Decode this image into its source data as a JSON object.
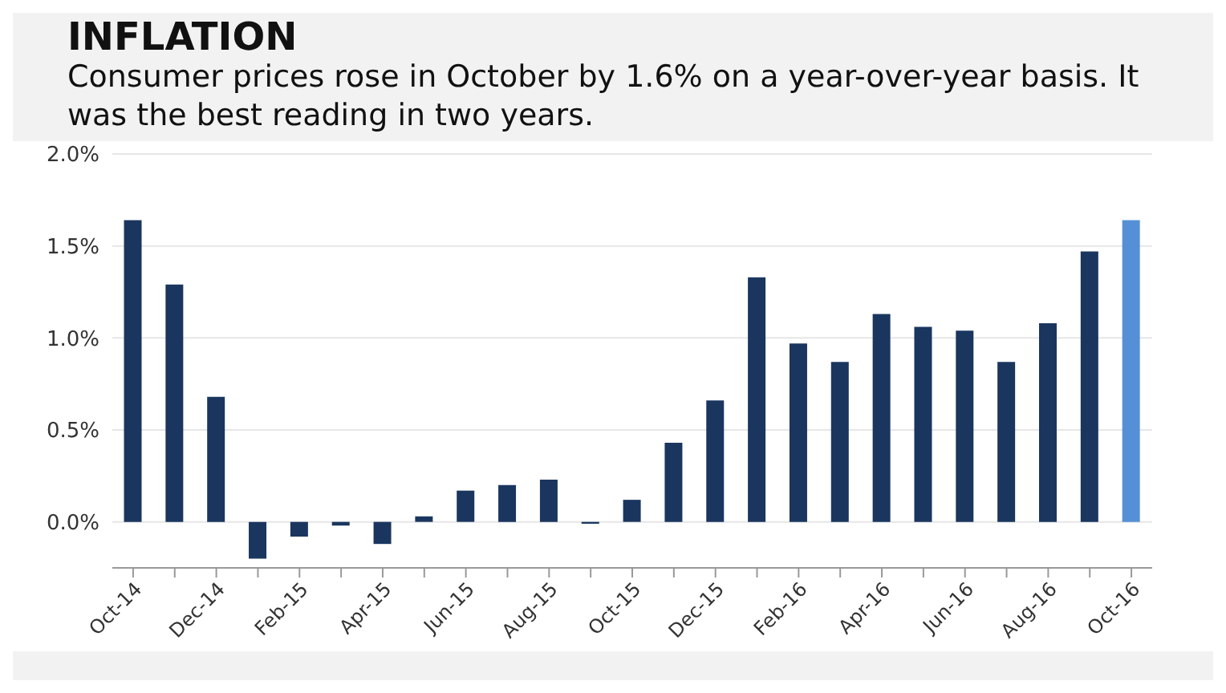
{
  "chart_data": {
    "type": "bar",
    "title": "INFLATION",
    "subtitle": "Consumer prices rose in October by 1.6% on a year-over-year basis. It was the best reading in two years.",
    "categories": [
      "Oct-14",
      null,
      "Dec-14",
      null,
      "Feb-15",
      null,
      "Apr-15",
      null,
      "Jun-15",
      null,
      "Aug-15",
      null,
      "Oct-15",
      null,
      "Dec-15",
      null,
      "Feb-16",
      null,
      "Apr-16",
      null,
      "Jun-16",
      null,
      "Aug-16",
      null,
      "Oct-16"
    ],
    "values": [
      1.64,
      1.29,
      0.68,
      -0.2,
      -0.08,
      -0.02,
      -0.12,
      0.03,
      0.17,
      0.2,
      0.23,
      -0.01,
      0.12,
      0.43,
      0.66,
      1.33,
      0.97,
      0.87,
      1.13,
      1.06,
      1.04,
      0.87,
      1.08,
      1.47,
      1.64
    ],
    "colors": [
      "#1a365f",
      "#1a365f",
      "#1a365f",
      "#1a365f",
      "#1a365f",
      "#1a365f",
      "#1a365f",
      "#1a365f",
      "#1a365f",
      "#1a365f",
      "#1a365f",
      "#1a365f",
      "#1a365f",
      "#1a365f",
      "#1a365f",
      "#1a365f",
      "#1a365f",
      "#1a365f",
      "#1a365f",
      "#1a365f",
      "#1a365f",
      "#1a365f",
      "#1a365f",
      "#1a365f",
      "#5590d6"
    ],
    "ylim": [
      -0.25,
      2.0
    ],
    "yticks": [
      {
        "value": 0,
        "label": "0.0%"
      },
      {
        "value": 0.5,
        "label": "0.5%"
      },
      {
        "value": 1.0,
        "label": "1.0%"
      },
      {
        "value": 1.5,
        "label": "1.5%"
      },
      {
        "value": 2.0,
        "label": "2.0%"
      }
    ],
    "grid": "y"
  }
}
